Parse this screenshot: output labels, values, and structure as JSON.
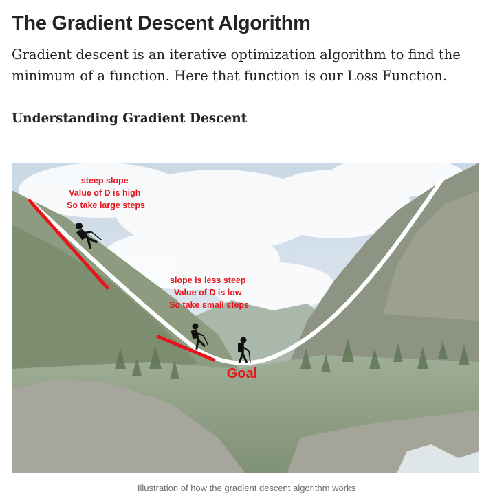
{
  "article": {
    "title": "The Gradient Descent Algorithm",
    "intro": "Gradient descent is an iterative optimization algorithm to find the minimum of a function. Here that function is our Loss Function.",
    "subheading": "Understanding Gradient Descent"
  },
  "figure": {
    "annotation_steep": [
      "steep slope",
      "Value of D is high",
      "So take large steps"
    ],
    "annotation_less_steep": [
      "slope is less steep",
      "Value of D is low",
      "So take small steps"
    ],
    "goal_label": "Goal",
    "caption": "Illustration of how the gradient descent algorithm works"
  },
  "colors": {
    "text": "#242424",
    "caption": "#6b6b6b",
    "annotation": "#e8141b",
    "curve": "#ffffff"
  },
  "icons": [
    "hiker-icon"
  ]
}
